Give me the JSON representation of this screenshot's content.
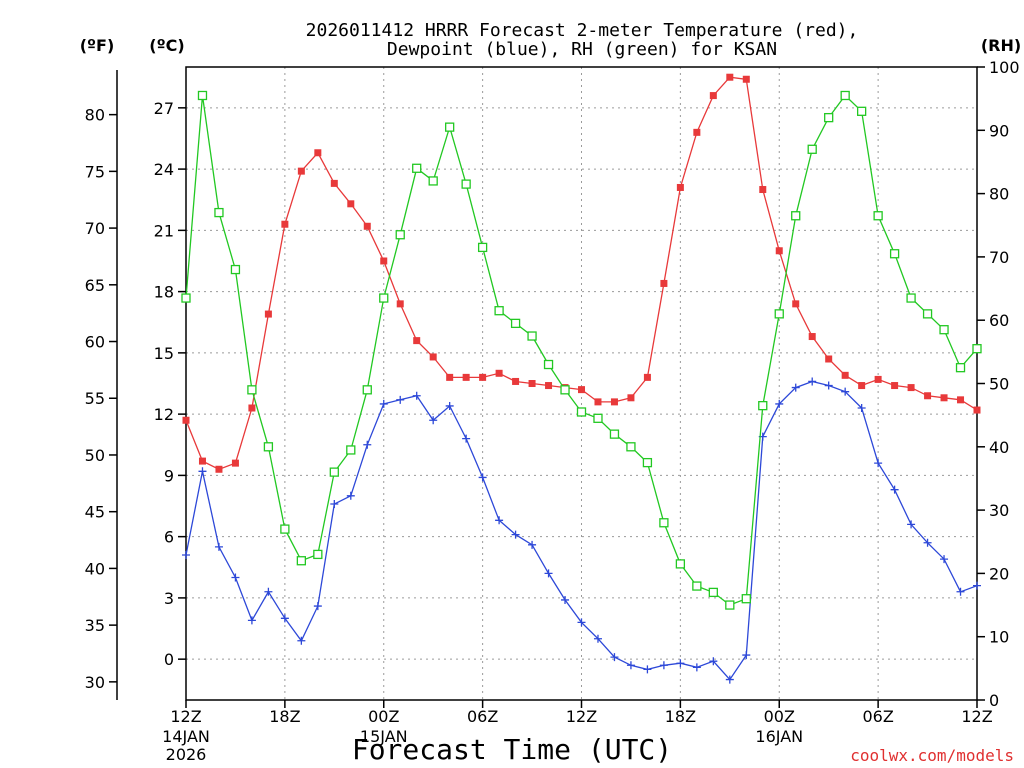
{
  "title_line1": "2026011412 HRRR Forecast 2-meter Temperature (red),",
  "title_line2": "Dewpoint (blue), RH (green) for KSAN",
  "unit_f": "(ºF)",
  "unit_c": "(ºC)",
  "unit_rh": "(RH)",
  "credit": "coolwx.com/models",
  "colors": {
    "temperature": "#e8393a",
    "dewpoint": "#2d48d8",
    "rh": "#22c822"
  },
  "chart_data": {
    "type": "line",
    "title": "2026011412 HRRR Forecast 2-meter Temperature (red), Dewpoint (blue), RH (green) for KSAN",
    "xlabel": "Forecast Time (UTC)",
    "x_hours": [
      0,
      1,
      2,
      3,
      4,
      5,
      6,
      7,
      8,
      9,
      10,
      11,
      12,
      13,
      14,
      15,
      16,
      17,
      18,
      19,
      20,
      21,
      22,
      23,
      24,
      25,
      26,
      27,
      28,
      29,
      30,
      31,
      32,
      33,
      34,
      35,
      36,
      37,
      38,
      39,
      40,
      41,
      42,
      43,
      44,
      45,
      46,
      47,
      48
    ],
    "x_ticks": [
      {
        "hour": 0,
        "label": "12Z",
        "sub": [
          "14JAN",
          "2026"
        ]
      },
      {
        "hour": 6,
        "label": "18Z",
        "sub": []
      },
      {
        "hour": 12,
        "label": "00Z",
        "sub": [
          "15JAN"
        ]
      },
      {
        "hour": 18,
        "label": "06Z",
        "sub": []
      },
      {
        "hour": 24,
        "label": "12Z",
        "sub": []
      },
      {
        "hour": 30,
        "label": "18Z",
        "sub": []
      },
      {
        "hour": 36,
        "label": "00Z",
        "sub": [
          "16JAN"
        ]
      },
      {
        "hour": 42,
        "label": "06Z",
        "sub": []
      },
      {
        "hour": 48,
        "label": "12Z",
        "sub": []
      }
    ],
    "y_left_c": {
      "label": "(ºC)",
      "range": [
        -2,
        29
      ],
      "ticks": [
        0,
        3,
        6,
        9,
        12,
        15,
        18,
        21,
        24,
        27
      ]
    },
    "y_left_f": {
      "label": "(ºF)",
      "ticks": [
        30,
        35,
        40,
        45,
        50,
        55,
        60,
        65,
        70,
        75,
        80
      ]
    },
    "y_right_rh": {
      "label": "(RH)",
      "range": [
        0,
        100
      ],
      "ticks": [
        0,
        10,
        20,
        30,
        40,
        50,
        60,
        70,
        80,
        90,
        100
      ]
    },
    "grid": true,
    "series": [
      {
        "name": "Temperature",
        "axis": "celsius",
        "marker": "filled-square",
        "values": [
          11.7,
          9.7,
          9.3,
          9.6,
          12.3,
          16.9,
          21.3,
          23.9,
          24.8,
          23.3,
          22.3,
          21.2,
          19.5,
          17.4,
          15.6,
          14.8,
          13.8,
          13.8,
          13.8,
          14.0,
          13.6,
          13.5,
          13.4,
          13.3,
          13.2,
          12.6,
          12.6,
          12.8,
          13.8,
          18.4,
          23.1,
          25.8,
          27.6,
          28.5,
          28.4,
          23.0,
          20.0,
          17.4,
          15.8,
          14.7,
          13.9,
          13.4,
          13.7,
          13.4,
          13.3,
          12.9,
          12.8,
          12.7,
          12.2
        ]
      },
      {
        "name": "Dewpoint",
        "axis": "celsius",
        "marker": "plus",
        "values": [
          5.1,
          9.2,
          5.5,
          4.0,
          1.9,
          3.3,
          2.0,
          0.9,
          2.6,
          7.6,
          8.0,
          10.5,
          12.5,
          12.7,
          12.9,
          11.7,
          12.4,
          10.8,
          8.9,
          6.8,
          6.1,
          5.6,
          4.2,
          2.9,
          1.8,
          1.0,
          0.1,
          -0.3,
          -0.5,
          -0.3,
          -0.2,
          -0.4,
          -0.1,
          -1.0,
          0.2,
          10.9,
          12.5,
          13.3,
          13.6,
          13.4,
          13.1,
          12.3,
          9.6,
          8.3,
          6.6,
          5.7,
          4.9,
          3.3,
          3.6
        ]
      },
      {
        "name": "RH",
        "axis": "rh",
        "marker": "open-square",
        "values": [
          63.5,
          95.5,
          77,
          68,
          49,
          40,
          27,
          22,
          23,
          36,
          39.5,
          49,
          63.5,
          73.5,
          84,
          82,
          90.5,
          81.5,
          71.5,
          61.5,
          59.5,
          57.5,
          53,
          49,
          45.5,
          44.5,
          42,
          40,
          37.5,
          28,
          21.5,
          18,
          17,
          15,
          16,
          46.5,
          61,
          76.5,
          87,
          92,
          95.5,
          93,
          76.5,
          70.5,
          63.5,
          61,
          58.5,
          52.5,
          55.5
        ]
      }
    ]
  }
}
